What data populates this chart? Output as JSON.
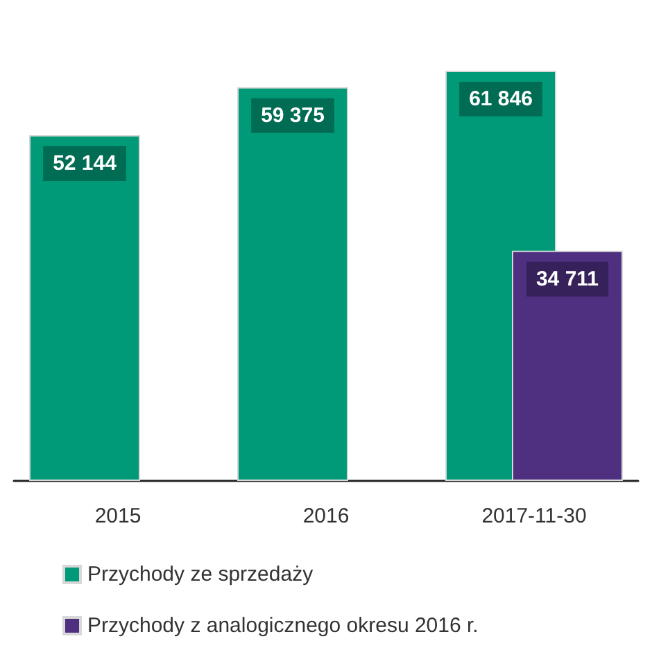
{
  "chart_data": {
    "type": "bar",
    "categories": [
      "2015",
      "2016",
      "2017-11-30"
    ],
    "series": [
      {
        "name": "Przychody ze sprzedaży",
        "color": "#009a78",
        "values": [
          52144,
          59375,
          61846
        ]
      },
      {
        "name": "Przychody z analogicznego okresu 2016 r.",
        "color": "#4e2f80",
        "values": [
          null,
          null,
          34711
        ]
      }
    ],
    "data_labels": true,
    "legend": "bottom left"
  }
}
